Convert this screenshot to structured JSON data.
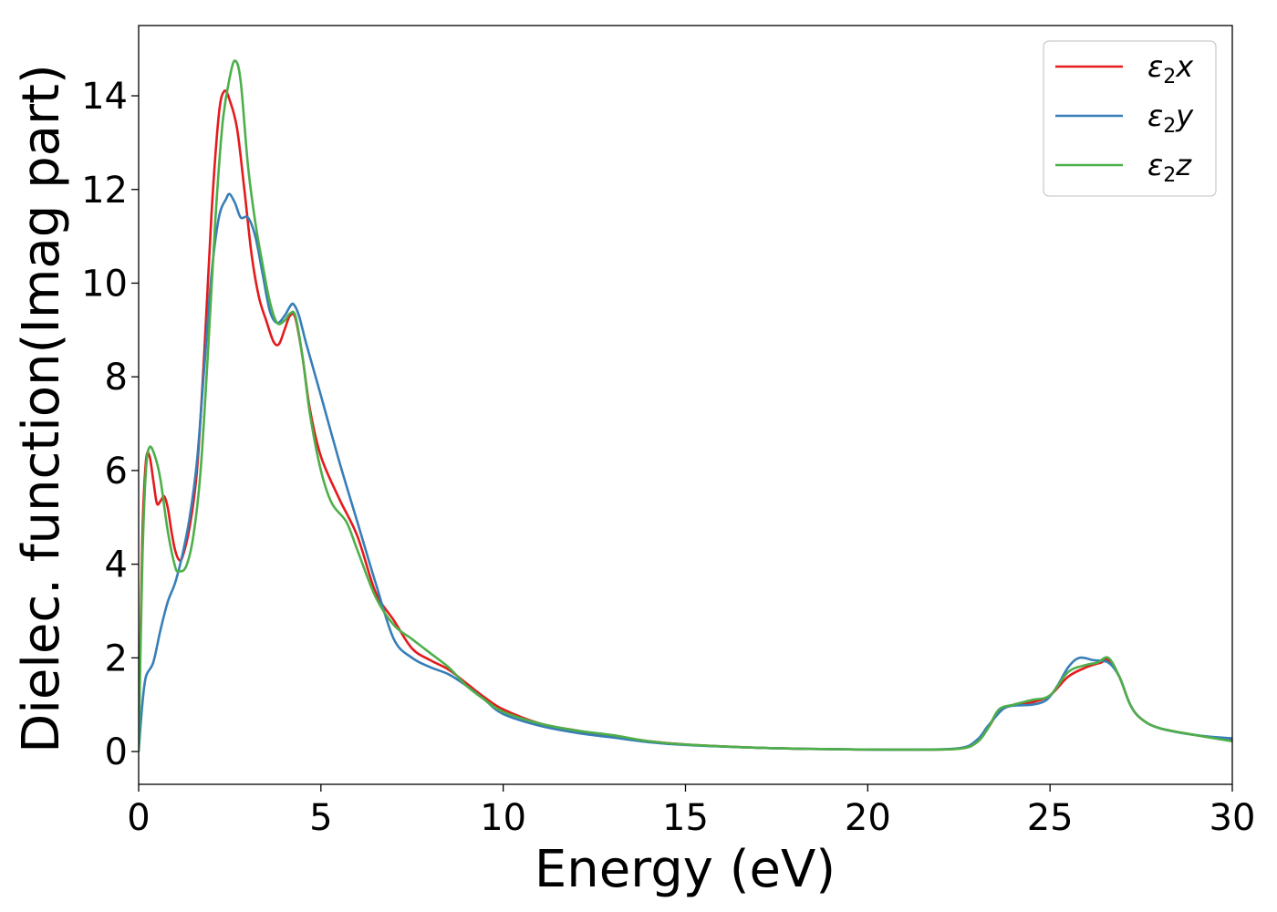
{
  "chart_data": {
    "type": "line",
    "title": "",
    "xlabel": "Energy (eV)",
    "ylabel": "Dielec. function(Imag part)",
    "xlim": [
      0,
      30
    ],
    "ylim": [
      -0.7,
      15.5
    ],
    "xticks": [
      0,
      5,
      10,
      15,
      20,
      25,
      30
    ],
    "yticks": [
      0,
      2,
      4,
      6,
      8,
      10,
      12,
      14
    ],
    "grid": false,
    "legend_position": "top-right",
    "series": [
      {
        "name": "ε2x",
        "label_base": "ε",
        "label_sub": "2",
        "label_tail": "x",
        "color": "#e41a1c",
        "points": [
          [
            0,
            0
          ],
          [
            0.1,
            4.5
          ],
          [
            0.2,
            6.2
          ],
          [
            0.3,
            6.3
          ],
          [
            0.4,
            5.8
          ],
          [
            0.5,
            5.3
          ],
          [
            0.6,
            5.35
          ],
          [
            0.7,
            5.45
          ],
          [
            0.8,
            5.2
          ],
          [
            0.9,
            4.7
          ],
          [
            1.0,
            4.3
          ],
          [
            1.1,
            4.1
          ],
          [
            1.2,
            4.15
          ],
          [
            1.4,
            4.8
          ],
          [
            1.6,
            6.0
          ],
          [
            1.8,
            8.5
          ],
          [
            2.0,
            11.5
          ],
          [
            2.2,
            13.6
          ],
          [
            2.35,
            14.1
          ],
          [
            2.5,
            13.9
          ],
          [
            2.7,
            13.3
          ],
          [
            2.9,
            12.0
          ],
          [
            3.1,
            10.6
          ],
          [
            3.3,
            9.7
          ],
          [
            3.5,
            9.2
          ],
          [
            3.7,
            8.75
          ],
          [
            3.85,
            8.7
          ],
          [
            4.0,
            9.0
          ],
          [
            4.15,
            9.3
          ],
          [
            4.3,
            9.25
          ],
          [
            4.5,
            8.4
          ],
          [
            4.7,
            7.3
          ],
          [
            5.0,
            6.3
          ],
          [
            5.5,
            5.4
          ],
          [
            6.0,
            4.6
          ],
          [
            6.5,
            3.4
          ],
          [
            7.0,
            2.8
          ],
          [
            7.5,
            2.2
          ],
          [
            8.0,
            1.95
          ],
          [
            8.5,
            1.75
          ],
          [
            9.0,
            1.45
          ],
          [
            9.5,
            1.15
          ],
          [
            10.0,
            0.9
          ],
          [
            11.0,
            0.6
          ],
          [
            12.0,
            0.45
          ],
          [
            13.0,
            0.33
          ],
          [
            14.0,
            0.22
          ],
          [
            15.0,
            0.15
          ],
          [
            17.0,
            0.08
          ],
          [
            19.0,
            0.05
          ],
          [
            21.0,
            0.04
          ],
          [
            22.5,
            0.06
          ],
          [
            23.0,
            0.2
          ],
          [
            23.3,
            0.5
          ],
          [
            23.6,
            0.85
          ],
          [
            24.0,
            1.0
          ],
          [
            24.5,
            1.05
          ],
          [
            25.0,
            1.2
          ],
          [
            25.5,
            1.6
          ],
          [
            26.0,
            1.8
          ],
          [
            26.4,
            1.9
          ],
          [
            26.6,
            1.95
          ],
          [
            26.9,
            1.6
          ],
          [
            27.2,
            1.0
          ],
          [
            27.5,
            0.7
          ],
          [
            28.0,
            0.5
          ],
          [
            29.0,
            0.35
          ],
          [
            30.0,
            0.25
          ]
        ]
      },
      {
        "name": "ε2y",
        "label_base": "ε",
        "label_sub": "2",
        "label_tail": "y",
        "color": "#377eb8",
        "points": [
          [
            0,
            0
          ],
          [
            0.1,
            1.0
          ],
          [
            0.2,
            1.6
          ],
          [
            0.4,
            1.9
          ],
          [
            0.6,
            2.6
          ],
          [
            0.8,
            3.2
          ],
          [
            1.0,
            3.6
          ],
          [
            1.2,
            4.2
          ],
          [
            1.4,
            5.0
          ],
          [
            1.6,
            6.2
          ],
          [
            1.8,
            8.2
          ],
          [
            2.0,
            10.2
          ],
          [
            2.2,
            11.4
          ],
          [
            2.4,
            11.8
          ],
          [
            2.5,
            11.9
          ],
          [
            2.65,
            11.7
          ],
          [
            2.8,
            11.4
          ],
          [
            3.0,
            11.4
          ],
          [
            3.2,
            11.0
          ],
          [
            3.4,
            10.2
          ],
          [
            3.6,
            9.4
          ],
          [
            3.8,
            9.15
          ],
          [
            4.0,
            9.3
          ],
          [
            4.15,
            9.5
          ],
          [
            4.25,
            9.55
          ],
          [
            4.4,
            9.3
          ],
          [
            4.6,
            8.7
          ],
          [
            5.0,
            7.6
          ],
          [
            5.5,
            6.2
          ],
          [
            6.0,
            4.9
          ],
          [
            6.5,
            3.6
          ],
          [
            7.0,
            2.4
          ],
          [
            7.5,
            2.0
          ],
          [
            8.0,
            1.8
          ],
          [
            8.5,
            1.65
          ],
          [
            9.0,
            1.4
          ],
          [
            9.5,
            1.1
          ],
          [
            10.0,
            0.8
          ],
          [
            11.0,
            0.55
          ],
          [
            12.0,
            0.4
          ],
          [
            13.0,
            0.3
          ],
          [
            14.0,
            0.2
          ],
          [
            15.0,
            0.14
          ],
          [
            17.0,
            0.08
          ],
          [
            19.0,
            0.05
          ],
          [
            21.0,
            0.04
          ],
          [
            22.5,
            0.07
          ],
          [
            23.0,
            0.25
          ],
          [
            23.3,
            0.55
          ],
          [
            23.7,
            0.9
          ],
          [
            24.0,
            0.98
          ],
          [
            24.5,
            1.0
          ],
          [
            24.9,
            1.1
          ],
          [
            25.2,
            1.4
          ],
          [
            25.5,
            1.8
          ],
          [
            25.8,
            2.0
          ],
          [
            26.2,
            1.95
          ],
          [
            26.6,
            1.9
          ],
          [
            26.9,
            1.6
          ],
          [
            27.2,
            1.0
          ],
          [
            27.5,
            0.7
          ],
          [
            28.0,
            0.5
          ],
          [
            29.0,
            0.35
          ],
          [
            30.0,
            0.28
          ]
        ]
      },
      {
        "name": "ε2z",
        "label_base": "ε",
        "label_sub": "2",
        "label_tail": "z",
        "color": "#4daf4a",
        "points": [
          [
            0,
            0
          ],
          [
            0.1,
            4.0
          ],
          [
            0.2,
            6.0
          ],
          [
            0.3,
            6.5
          ],
          [
            0.45,
            6.3
          ],
          [
            0.6,
            5.8
          ],
          [
            0.8,
            4.7
          ],
          [
            1.0,
            3.95
          ],
          [
            1.1,
            3.85
          ],
          [
            1.3,
            3.95
          ],
          [
            1.5,
            4.6
          ],
          [
            1.7,
            6.0
          ],
          [
            1.9,
            8.5
          ],
          [
            2.1,
            11.3
          ],
          [
            2.3,
            13.4
          ],
          [
            2.5,
            14.4
          ],
          [
            2.65,
            14.75
          ],
          [
            2.8,
            14.3
          ],
          [
            3.0,
            12.5
          ],
          [
            3.2,
            11.3
          ],
          [
            3.4,
            10.4
          ],
          [
            3.6,
            9.6
          ],
          [
            3.8,
            9.15
          ],
          [
            4.0,
            9.2
          ],
          [
            4.15,
            9.35
          ],
          [
            4.3,
            9.3
          ],
          [
            4.5,
            8.4
          ],
          [
            4.7,
            7.2
          ],
          [
            5.0,
            6.0
          ],
          [
            5.3,
            5.3
          ],
          [
            5.7,
            4.9
          ],
          [
            6.0,
            4.3
          ],
          [
            6.5,
            3.3
          ],
          [
            7.0,
            2.7
          ],
          [
            7.5,
            2.4
          ],
          [
            8.0,
            2.1
          ],
          [
            8.5,
            1.8
          ],
          [
            9.0,
            1.4
          ],
          [
            9.5,
            1.1
          ],
          [
            10.0,
            0.85
          ],
          [
            11.0,
            0.6
          ],
          [
            12.0,
            0.45
          ],
          [
            13.0,
            0.35
          ],
          [
            14.0,
            0.22
          ],
          [
            15.0,
            0.15
          ],
          [
            17.0,
            0.08
          ],
          [
            19.0,
            0.05
          ],
          [
            21.0,
            0.04
          ],
          [
            22.5,
            0.06
          ],
          [
            23.0,
            0.2
          ],
          [
            23.3,
            0.5
          ],
          [
            23.6,
            0.9
          ],
          [
            24.0,
            1.0
          ],
          [
            24.5,
            1.1
          ],
          [
            25.0,
            1.2
          ],
          [
            25.5,
            1.7
          ],
          [
            26.0,
            1.85
          ],
          [
            26.3,
            1.9
          ],
          [
            26.6,
            2.0
          ],
          [
            26.9,
            1.6
          ],
          [
            27.2,
            1.0
          ],
          [
            27.5,
            0.7
          ],
          [
            28.0,
            0.5
          ],
          [
            29.0,
            0.35
          ],
          [
            30.0,
            0.22
          ]
        ]
      }
    ]
  }
}
